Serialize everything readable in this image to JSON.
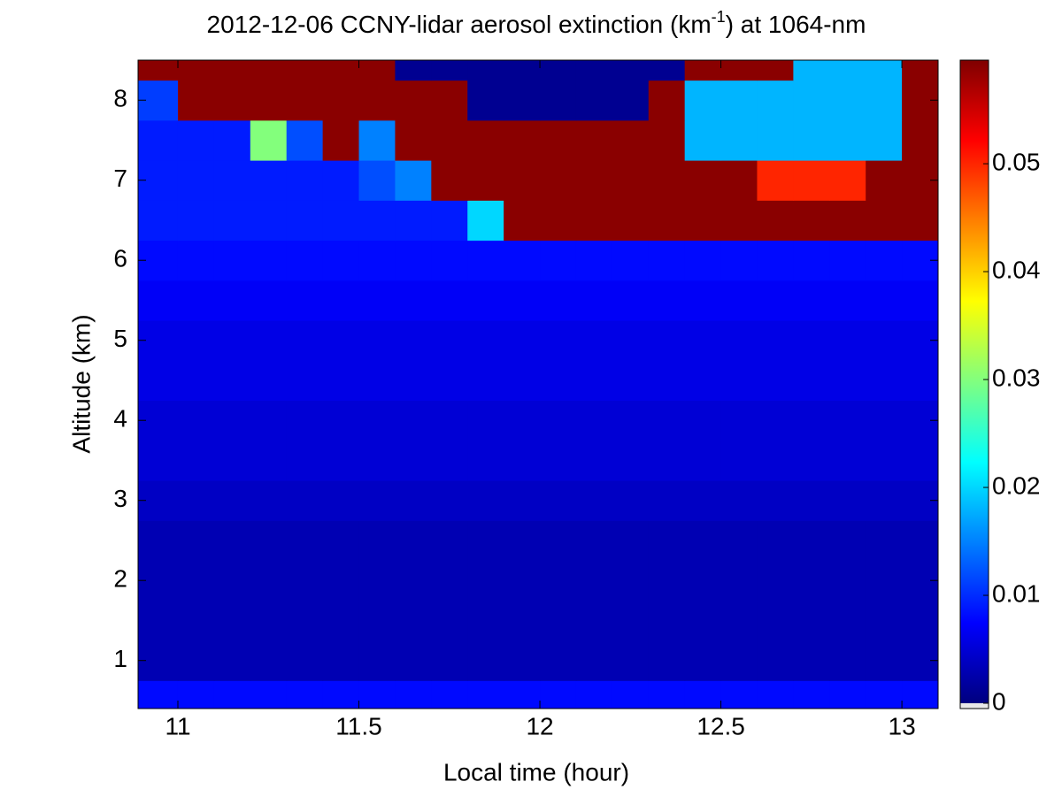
{
  "chart_data": {
    "type": "heatmap",
    "title": [
      "2012-12-06 CCNY-lidar aerosol extinction (km",
      "-1",
      ") at 1064-nm"
    ],
    "xlabel": "Local time (hour)",
    "ylabel": "Altitude (km)",
    "x": [
      10.95,
      11.05,
      11.15,
      11.25,
      11.35,
      11.45,
      11.55,
      11.65,
      11.75,
      11.85,
      11.95,
      12.05,
      12.15,
      12.25,
      12.35,
      12.45,
      12.55,
      12.65,
      12.75,
      12.85,
      12.95,
      13.05
    ],
    "y": [
      0.5,
      1.0,
      1.5,
      2.0,
      2.5,
      3.0,
      3.5,
      4.0,
      4.5,
      5.0,
      5.5,
      6.0,
      6.5,
      7.0,
      7.5,
      8.0,
      8.5
    ],
    "z": [
      [
        0.008,
        0.008,
        0.008,
        0.008,
        0.008,
        0.008,
        0.008,
        0.008,
        0.008,
        0.008,
        0.008,
        0.008,
        0.008,
        0.008,
        0.008,
        0.008,
        0.008,
        0.008,
        0.008,
        0.008,
        0.008,
        0.008
      ],
      [
        0.003,
        0.003,
        0.003,
        0.003,
        0.003,
        0.003,
        0.003,
        0.003,
        0.003,
        0.003,
        0.003,
        0.003,
        0.003,
        0.003,
        0.003,
        0.003,
        0.003,
        0.003,
        0.003,
        0.003,
        0.003,
        0.003
      ],
      [
        0.003,
        0.003,
        0.003,
        0.003,
        0.003,
        0.003,
        0.003,
        0.003,
        0.003,
        0.003,
        0.003,
        0.003,
        0.003,
        0.003,
        0.003,
        0.003,
        0.003,
        0.003,
        0.003,
        0.003,
        0.003,
        0.003
      ],
      [
        0.003,
        0.003,
        0.003,
        0.003,
        0.003,
        0.003,
        0.003,
        0.003,
        0.003,
        0.003,
        0.003,
        0.003,
        0.003,
        0.003,
        0.003,
        0.003,
        0.003,
        0.003,
        0.003,
        0.003,
        0.003,
        0.003
      ],
      [
        0.003,
        0.003,
        0.003,
        0.003,
        0.003,
        0.003,
        0.003,
        0.003,
        0.003,
        0.003,
        0.003,
        0.003,
        0.003,
        0.003,
        0.003,
        0.003,
        0.003,
        0.003,
        0.003,
        0.003,
        0.003,
        0.003
      ],
      [
        0.004,
        0.004,
        0.004,
        0.004,
        0.004,
        0.004,
        0.004,
        0.004,
        0.004,
        0.004,
        0.004,
        0.004,
        0.004,
        0.004,
        0.004,
        0.004,
        0.004,
        0.004,
        0.004,
        0.004,
        0.004,
        0.004
      ],
      [
        0.005,
        0.005,
        0.005,
        0.005,
        0.005,
        0.005,
        0.005,
        0.005,
        0.005,
        0.005,
        0.005,
        0.005,
        0.005,
        0.005,
        0.005,
        0.005,
        0.005,
        0.005,
        0.005,
        0.005,
        0.005,
        0.005
      ],
      [
        0.005,
        0.005,
        0.005,
        0.005,
        0.005,
        0.005,
        0.005,
        0.005,
        0.005,
        0.005,
        0.005,
        0.005,
        0.005,
        0.005,
        0.005,
        0.005,
        0.005,
        0.005,
        0.005,
        0.005,
        0.005,
        0.005
      ],
      [
        0.006,
        0.006,
        0.006,
        0.006,
        0.006,
        0.006,
        0.006,
        0.006,
        0.006,
        0.006,
        0.006,
        0.006,
        0.006,
        0.006,
        0.006,
        0.006,
        0.006,
        0.006,
        0.006,
        0.006,
        0.006,
        0.006
      ],
      [
        0.006,
        0.006,
        0.006,
        0.006,
        0.006,
        0.006,
        0.006,
        0.006,
        0.006,
        0.006,
        0.006,
        0.006,
        0.006,
        0.006,
        0.006,
        0.006,
        0.006,
        0.006,
        0.006,
        0.006,
        0.006,
        0.006
      ],
      [
        0.007,
        0.007,
        0.007,
        0.007,
        0.007,
        0.007,
        0.007,
        0.007,
        0.007,
        0.007,
        0.007,
        0.007,
        0.007,
        0.007,
        0.007,
        0.007,
        0.007,
        0.007,
        0.007,
        0.007,
        0.007,
        0.007
      ],
      [
        0.008,
        0.008,
        0.008,
        0.008,
        0.008,
        0.008,
        0.008,
        0.008,
        0.008,
        0.008,
        0.008,
        0.008,
        0.008,
        0.008,
        0.008,
        0.008,
        0.008,
        0.008,
        0.008,
        0.008,
        0.008,
        0.008
      ],
      [
        0.009,
        0.009,
        0.009,
        0.009,
        0.009,
        0.009,
        0.009,
        0.009,
        0.009,
        0.02,
        0.059,
        0.059,
        0.059,
        0.059,
        0.059,
        0.059,
        0.059,
        0.059,
        0.059,
        0.059,
        0.059,
        0.059
      ],
      [
        0.009,
        0.009,
        0.009,
        0.009,
        0.009,
        0.009,
        0.012,
        0.015,
        0.059,
        0.059,
        0.059,
        0.059,
        0.059,
        0.059,
        0.059,
        0.059,
        0.059,
        0.05,
        0.05,
        0.05,
        0.059,
        0.059
      ],
      [
        0.009,
        0.009,
        0.009,
        0.03,
        0.012,
        0.059,
        0.015,
        0.059,
        0.059,
        0.059,
        0.059,
        0.059,
        0.059,
        0.059,
        0.059,
        0.018,
        0.018,
        0.018,
        0.018,
        0.018,
        0.018,
        0.059
      ],
      [
        0.011,
        0.059,
        0.059,
        0.059,
        0.059,
        0.059,
        0.059,
        0.059,
        0.059,
        0.001,
        0.001,
        0.001,
        0.001,
        0.001,
        0.059,
        0.018,
        0.018,
        0.018,
        0.018,
        0.018,
        0.018,
        0.059
      ],
      [
        0.059,
        0.059,
        0.059,
        0.059,
        0.059,
        0.059,
        0.059,
        0.001,
        0.001,
        0.001,
        0.001,
        0.001,
        0.001,
        0.001,
        0.001,
        0.059,
        0.059,
        0.059,
        0.018,
        0.018,
        0.018,
        0.059
      ]
    ],
    "xlim": [
      10.89,
      13.1
    ],
    "ylim": [
      0.4,
      8.5
    ],
    "xticks": [
      11,
      11.5,
      12,
      12.5,
      13
    ],
    "yticks": [
      1,
      2,
      3,
      4,
      5,
      6,
      7,
      8
    ],
    "clim": [
      0,
      0.0596
    ],
    "cticks": [
      0,
      0.01,
      0.02,
      0.03,
      0.04,
      0.05
    ],
    "colormap": "jet"
  }
}
